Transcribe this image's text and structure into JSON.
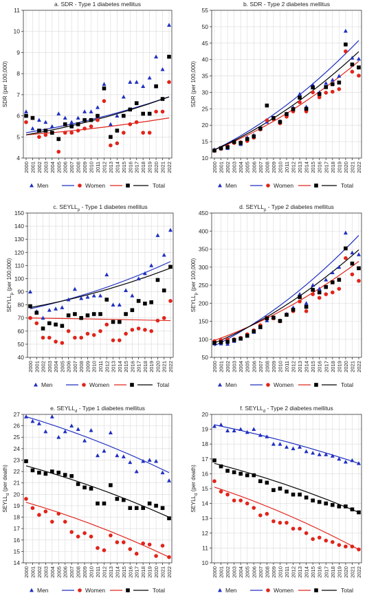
{
  "colors": {
    "Men": "#1f2fbf",
    "Women": "#e0241b",
    "Total": "#000000"
  },
  "chart_data": [
    {
      "type": "scatter",
      "title": "a. SDR - Type 1 diabetes mellitus",
      "ylabel": "SDR (per 100,000)",
      "ylim": [
        4,
        11
      ],
      "yticks": [
        4,
        5,
        6,
        7,
        8,
        9,
        10,
        11
      ],
      "grid": true,
      "legend": "bottom",
      "x": [
        "2000",
        "2001",
        "2002",
        "2003",
        "2004",
        "2005",
        "2006",
        "2007",
        "2008",
        "2009",
        "2010",
        "2011",
        "2012",
        "2013",
        "2014",
        "2015",
        "2016",
        "2017",
        "2018",
        "2019",
        "2020",
        "2021",
        "2022"
      ],
      "series": [
        {
          "name": "Men",
          "marker": "triangle",
          "values": [
            6.2,
            5.4,
            5.8,
            5.7,
            5.5,
            6.1,
            5.9,
            5.7,
            5.9,
            6.2,
            6.2,
            6.4,
            7.5,
            5.6,
            6.0,
            6.9,
            7.6,
            7.6,
            7.4,
            7.8,
            8.8,
            8.2,
            10.3
          ],
          "trend": [
            5.2,
            6.9
          ]
        },
        {
          "name": "Women",
          "marker": "circle",
          "values": [
            5.7,
            5.9,
            5.0,
            5.1,
            5.2,
            4.3,
            5.2,
            5.2,
            5.3,
            5.4,
            5.5,
            5.8,
            6.7,
            4.6,
            4.7,
            5.2,
            5.6,
            5.7,
            5.2,
            5.2,
            6.2,
            6.2,
            7.6
          ],
          "trend": [
            5.1,
            5.9
          ]
        },
        {
          "name": "Total",
          "marker": "square",
          "values": [
            6.0,
            5.9,
            5.3,
            5.3,
            5.2,
            4.9,
            5.6,
            5.5,
            5.6,
            5.8,
            5.8,
            6.0,
            7.3,
            5.0,
            5.3,
            6.0,
            6.3,
            6.6,
            6.1,
            6.1,
            7.4,
            6.8,
            8.8
          ],
          "trend": [
            5.1,
            6.9
          ]
        }
      ]
    },
    {
      "type": "scatter",
      "title": "b. SDR - Type 2 diabetes mellitus",
      "ylabel": "SDR (per 100,000)",
      "ylim": [
        10,
        55
      ],
      "yticks": [
        10,
        15,
        20,
        25,
        30,
        35,
        40,
        45,
        50,
        55
      ],
      "grid": true,
      "legend": "bottom",
      "x": [
        "2000",
        "2001",
        "2002",
        "2003",
        "2004",
        "2005",
        "2006",
        "2007",
        "2008",
        "2009",
        "2010",
        "2011",
        "2012",
        "2013",
        "2014",
        "2015",
        "2016",
        "2017",
        "2018",
        "2019",
        "2020",
        "2021",
        "2022"
      ],
      "series": [
        {
          "name": "Men",
          "marker": "triangle",
          "values": [
            12.6,
            13.1,
            13.0,
            15.0,
            14.2,
            16.2,
            17.0,
            19.2,
            21.0,
            22.3,
            21.2,
            23.5,
            25.4,
            29.5,
            25.6,
            32.3,
            30.0,
            32.8,
            33.8,
            35.0,
            48.7,
            40.5,
            40.2
          ],
          "trend": [
            12.5,
            45.8
          ]
        },
        {
          "name": "Women",
          "marker": "circle",
          "values": [
            12.2,
            12.8,
            13.6,
            14.6,
            14.8,
            15.2,
            16.2,
            18.7,
            21.5,
            21.8,
            20.6,
            22.6,
            24.2,
            27.0,
            24.2,
            30.0,
            28.5,
            29.9,
            30.2,
            31.0,
            42.5,
            36.3,
            35.1
          ],
          "trend": [
            12.5,
            39.5
          ]
        },
        {
          "name": "Total",
          "marker": "square",
          "values": [
            12.3,
            13.0,
            13.3,
            14.9,
            14.6,
            15.8,
            16.6,
            19.0,
            26.0,
            22.2,
            21.0,
            23.4,
            24.9,
            28.4,
            25.0,
            31.5,
            29.5,
            31.6,
            32.5,
            33.0,
            44.6,
            38.5,
            37.6
          ],
          "trend": [
            12.5,
            42.4
          ]
        }
      ]
    },
    {
      "type": "scatter",
      "title": "c. SEYLLp - Type 1 diabetes mellitus",
      "ylabel": "SEYLLp (per 100,000)",
      "ylim": [
        40,
        150
      ],
      "yticks": [
        40,
        50,
        60,
        70,
        80,
        90,
        100,
        110,
        120,
        130,
        140,
        150
      ],
      "grid": true,
      "legend": "bottom",
      "x": [
        "2000",
        "2001",
        "2002",
        "2003",
        "2004",
        "2005",
        "2006",
        "2007",
        "2008",
        "2009",
        "2010",
        "2011",
        "2012",
        "2013",
        "2014",
        "2015",
        "2016",
        "2017",
        "2018",
        "2019",
        "2020",
        "2021",
        "2022"
      ],
      "series": [
        {
          "name": "Men",
          "marker": "triangle",
          "values": [
            90,
            75,
            70,
            76,
            77,
            78,
            84,
            92,
            85,
            86,
            87,
            87,
            103,
            80,
            80,
            91,
            87,
            100,
            104,
            110,
            133,
            118,
            137
          ],
          "trend": [
            77,
            113
          ]
        },
        {
          "name": "Women",
          "marker": "circle",
          "values": [
            70,
            66,
            55,
            55,
            52,
            51,
            60,
            55,
            55,
            58,
            57,
            60,
            65,
            53,
            53,
            58,
            61,
            62,
            61,
            60,
            68,
            70,
            83
          ],
          "trend": [
            70,
            68
          ]
        },
        {
          "name": "Total",
          "marker": "square",
          "values": [
            79,
            74,
            62,
            66,
            65,
            64,
            72,
            73,
            70,
            72,
            73,
            73,
            84,
            67,
            67,
            73,
            76,
            83,
            81,
            82,
            99,
            91,
            109
          ],
          "trend": [
            78,
            108
          ]
        }
      ]
    },
    {
      "type": "scatter",
      "title": "d. SEYLLp - Type 2 diabetes mellitus",
      "ylabel": "SEYLLp (per 100,000)",
      "ylim": [
        50,
        450
      ],
      "yticks": [
        50,
        100,
        150,
        200,
        250,
        300,
        350,
        400,
        450
      ],
      "grid": true,
      "legend": "bottom",
      "x": [
        "2000",
        "2001",
        "2002",
        "2003",
        "2004",
        "2005",
        "2006",
        "2007",
        "2008",
        "2009",
        "2010",
        "2011",
        "2012",
        "2013",
        "2014",
        "2015",
        "2016",
        "2017",
        "2018",
        "2019",
        "2020",
        "2021",
        "2022"
      ],
      "series": [
        {
          "name": "Men",
          "marker": "triangle",
          "values": [
            88,
            88,
            87,
            95,
            101,
            109,
            120,
            133,
            152,
            160,
            152,
            170,
            188,
            225,
            200,
            250,
            240,
            265,
            285,
            300,
            395,
            340,
            335
          ],
          "trend": [
            82,
            388
          ]
        },
        {
          "name": "Women",
          "marker": "circle",
          "values": [
            95,
            98,
            100,
            100,
            104,
            114,
            125,
            139,
            160,
            158,
            150,
            168,
            178,
            205,
            178,
            225,
            215,
            225,
            230,
            240,
            325,
            280,
            262
          ],
          "trend": [
            97,
            316
          ]
        },
        {
          "name": "Total",
          "marker": "square",
          "values": [
            90,
            92,
            93,
            98,
            102,
            110,
            122,
            134,
            158,
            160,
            151,
            168,
            182,
            217,
            190,
            237,
            230,
            245,
            258,
            265,
            352,
            310,
            297
          ],
          "trend": [
            90,
            348
          ]
        }
      ]
    },
    {
      "type": "scatter",
      "title": "e. SEYLLd - Type 1 diabetes mellitus",
      "ylabel": "SEYLLd (per death)",
      "ylim": [
        14,
        27
      ],
      "yticks": [
        14,
        15,
        16,
        17,
        18,
        19,
        20,
        21,
        22,
        23,
        24,
        25,
        26,
        27
      ],
      "grid": true,
      "legend": "bottom",
      "x": [
        "2000",
        "2001",
        "2002",
        "2003",
        "2004",
        "2005",
        "2006",
        "2007",
        "2008",
        "2009",
        "2010",
        "2011",
        "2012",
        "2013",
        "2014",
        "2015",
        "2016",
        "2017",
        "2018",
        "2019",
        "2020",
        "2021",
        "2022"
      ],
      "series": [
        {
          "name": "Men",
          "marker": "triangle",
          "values": [
            26.8,
            26.4,
            26.2,
            25.5,
            26.8,
            25.0,
            25.5,
            26.0,
            25.7,
            24.7,
            25.6,
            23.4,
            23.8,
            25.4,
            23.4,
            23.3,
            22.8,
            22.0,
            22.9,
            23.0,
            22.9,
            21.9,
            21.2
          ],
          "trend": [
            26.8,
            21.9
          ]
        },
        {
          "name": "Women",
          "marker": "circle",
          "values": [
            19.6,
            18.8,
            18.2,
            18.5,
            17.6,
            18.3,
            17.6,
            16.7,
            16.3,
            16.6,
            16.3,
            15.3,
            15.1,
            16.4,
            15.8,
            15.8,
            15.2,
            14.8,
            15.7,
            15.6,
            14.6,
            15.5,
            14.5
          ],
          "trend": [
            19.3,
            14.5
          ]
        },
        {
          "name": "Total",
          "marker": "square",
          "values": [
            22.9,
            22.1,
            21.9,
            21.8,
            22.0,
            21.9,
            21.7,
            21.6,
            20.9,
            20.6,
            20.5,
            19.2,
            19.2,
            20.8,
            19.6,
            19.5,
            18.8,
            18.8,
            18.8,
            19.2,
            19.0,
            18.8,
            17.9
          ],
          "trend": [
            22.5,
            18.0
          ]
        }
      ]
    },
    {
      "type": "scatter",
      "title": "f. SEYLLd - Type 2 diabetes mellitus",
      "ylabel": "SEYLLd (per death)",
      "ylim": [
        10,
        20
      ],
      "yticks": [
        10,
        11,
        12,
        13,
        14,
        15,
        16,
        17,
        18,
        19,
        20
      ],
      "grid": true,
      "legend": "bottom",
      "x": [
        "2000",
        "2001",
        "2002",
        "2003",
        "2004",
        "2005",
        "2006",
        "2007",
        "2008",
        "2009",
        "2010",
        "2011",
        "2012",
        "2013",
        "2014",
        "2015",
        "2016",
        "2017",
        "2018",
        "2019",
        "2020",
        "2021",
        "2022"
      ],
      "series": [
        {
          "name": "Men",
          "marker": "triangle",
          "values": [
            19.2,
            19.3,
            18.9,
            18.9,
            19.0,
            18.8,
            19.0,
            18.6,
            18.5,
            18.0,
            18.0,
            17.8,
            17.7,
            17.8,
            17.5,
            17.4,
            17.3,
            17.3,
            17.2,
            17.0,
            16.8,
            16.9,
            16.7
          ],
          "trend": [
            19.3,
            16.7
          ]
        },
        {
          "name": "Women",
          "marker": "circle",
          "values": [
            15.5,
            14.8,
            14.6,
            14.2,
            14.2,
            14.0,
            13.7,
            13.2,
            13.3,
            12.8,
            12.7,
            12.7,
            12.3,
            12.3,
            12.0,
            11.6,
            11.7,
            11.5,
            11.4,
            11.2,
            11.1,
            11.1,
            10.9
          ],
          "trend": [
            15.1,
            10.9
          ]
        },
        {
          "name": "Total",
          "marker": "square",
          "values": [
            16.9,
            16.5,
            16.2,
            16.1,
            16.0,
            15.9,
            15.9,
            15.5,
            15.4,
            14.9,
            15.0,
            14.8,
            14.6,
            14.6,
            14.4,
            14.2,
            14.1,
            14.0,
            13.9,
            13.8,
            13.8,
            13.6,
            13.4
          ],
          "trend": [
            16.7,
            13.4
          ]
        }
      ]
    }
  ]
}
